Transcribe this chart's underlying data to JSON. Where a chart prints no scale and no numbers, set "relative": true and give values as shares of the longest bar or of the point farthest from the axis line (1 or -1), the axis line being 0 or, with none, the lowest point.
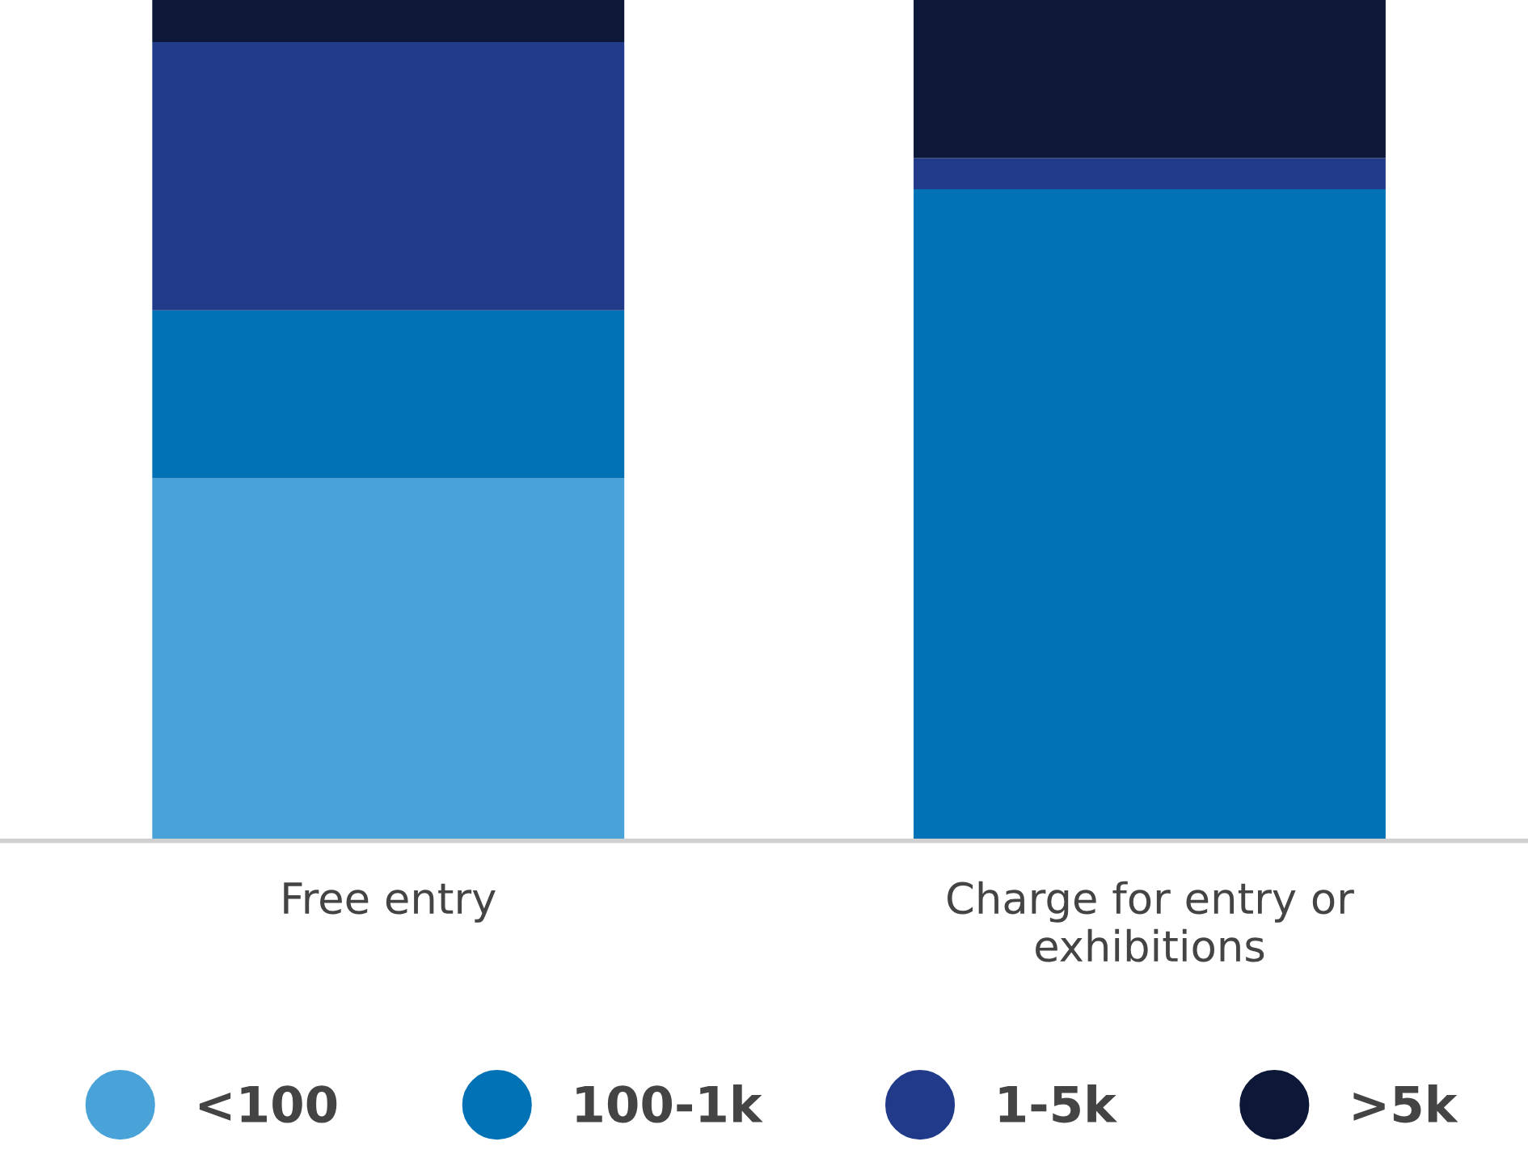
{
  "chart_data": {
    "type": "bar",
    "stacked": true,
    "relative": true,
    "legend": "bottom",
    "grid": false,
    "categories": [
      "Free entry",
      "Charge for entry or\nexhibitions"
    ],
    "series": [
      {
        "name": "<100",
        "color": "#49a3d8",
        "values": [
          0.431,
          0
        ]
      },
      {
        "name": "100-1k",
        "color": "#0072b5",
        "values": [
          0.2,
          0.775
        ]
      },
      {
        "name": "1-5k",
        "color": "#213a8a",
        "values": [
          0.319,
          0.037
        ]
      },
      {
        "name": ">5k",
        "color": "#0d1838",
        "values": [
          0.05,
          0.188
        ]
      }
    ]
  }
}
